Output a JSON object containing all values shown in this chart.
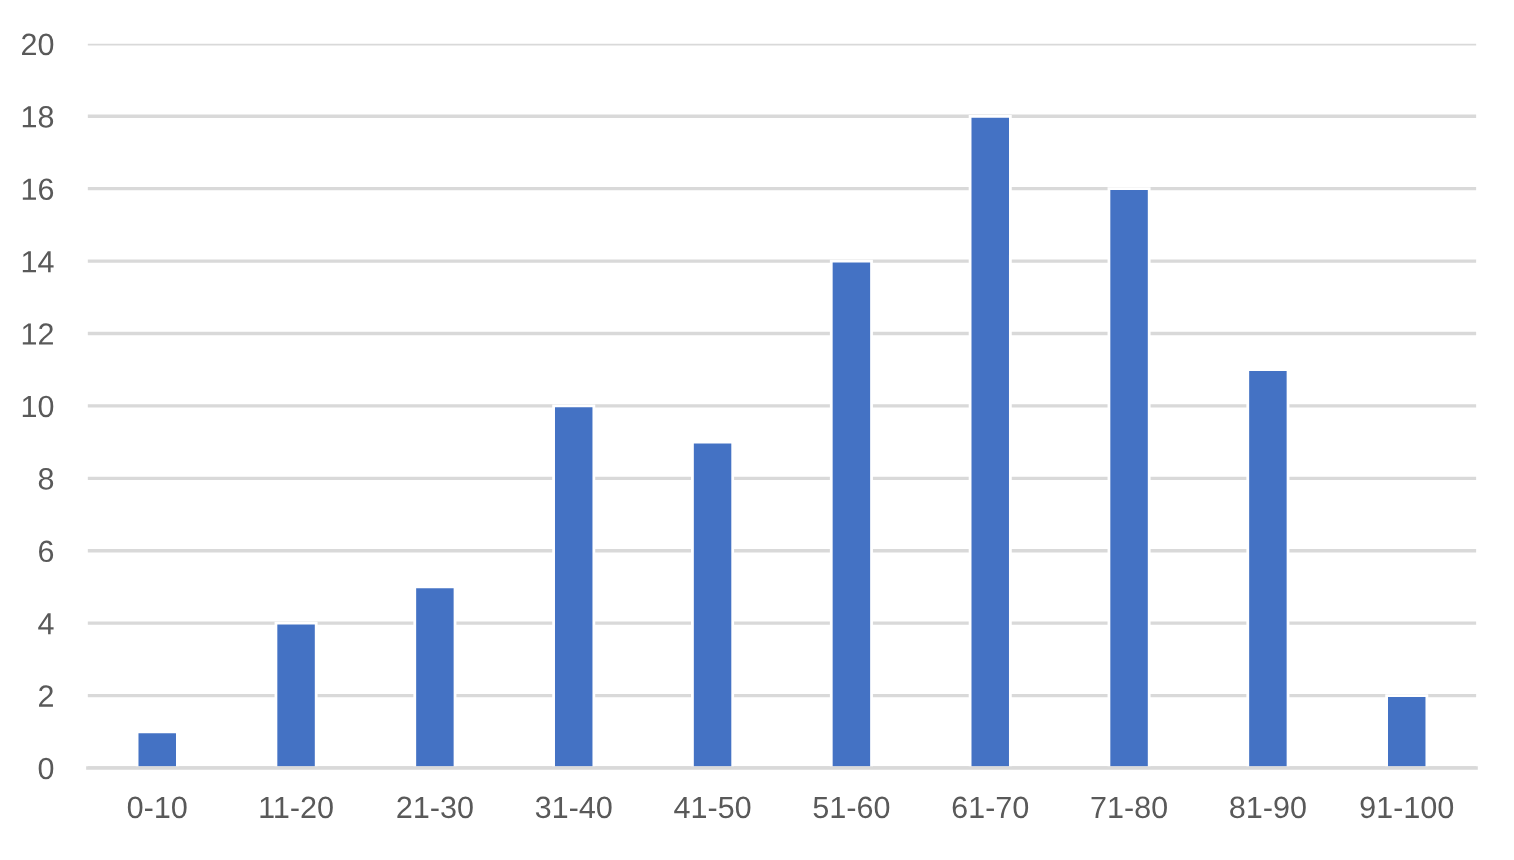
{
  "chart_data": {
    "type": "bar",
    "categories": [
      "0-10",
      "11-20",
      "21-30",
      "31-40",
      "41-50",
      "51-60",
      "61-70",
      "71-80",
      "81-90",
      "91-100"
    ],
    "values": [
      1,
      4,
      5,
      10,
      9,
      14,
      18,
      16,
      11,
      2
    ],
    "color": "#4472c4",
    "ylim": [
      0,
      20
    ],
    "yticks": [
      0,
      2,
      4,
      6,
      8,
      10,
      12,
      14,
      16,
      18,
      20
    ],
    "grid": "y"
  }
}
